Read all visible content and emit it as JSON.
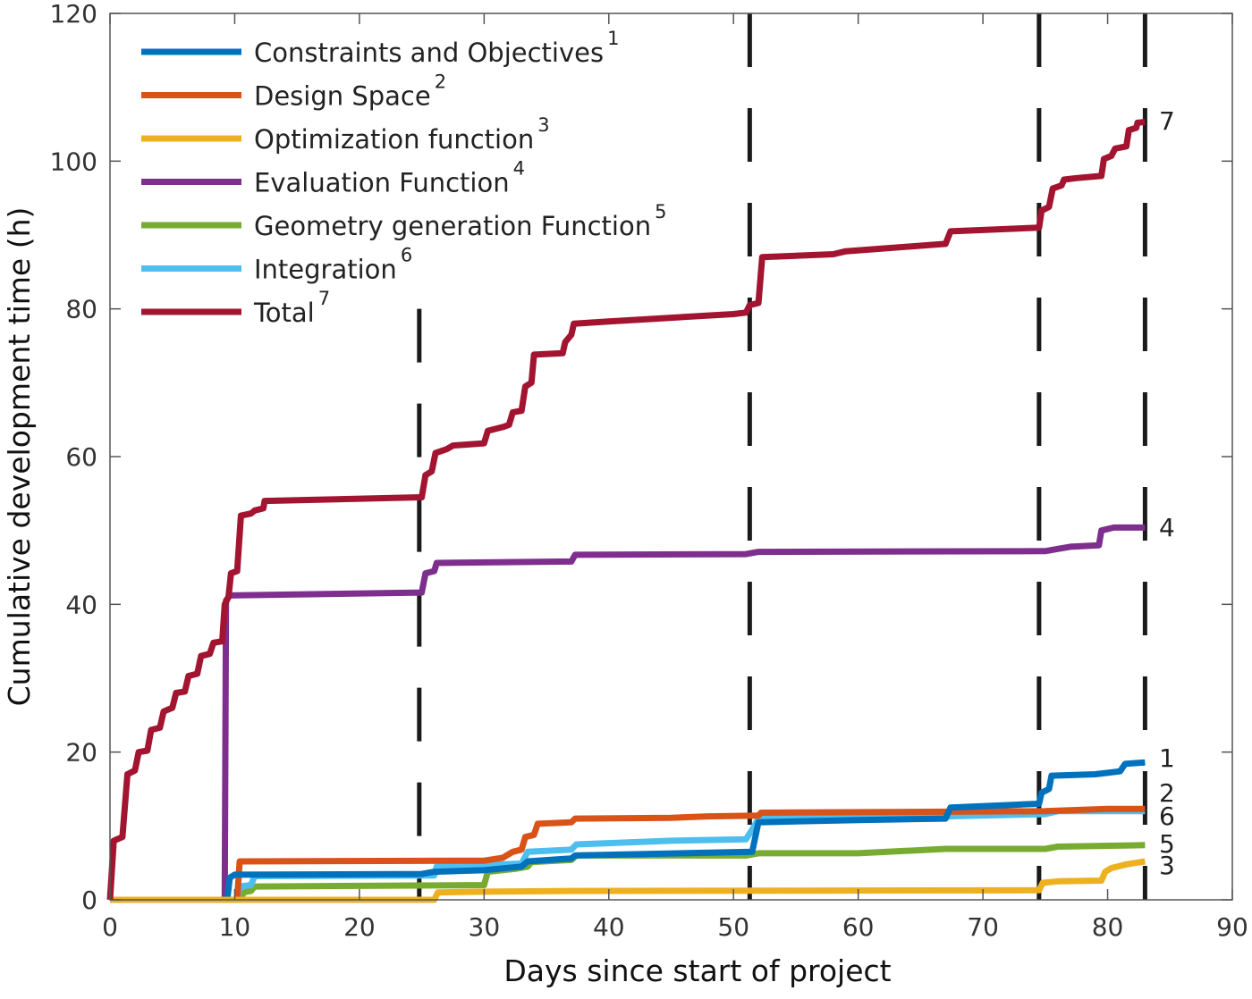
{
  "chart_data": {
    "type": "line",
    "title": "",
    "xlabel": "Days since start of project",
    "ylabel": "Cumulative development time (h)",
    "xlim": [
      0,
      90
    ],
    "ylim": [
      0,
      120
    ],
    "xticks": [
      0,
      10,
      20,
      30,
      40,
      50,
      60,
      70,
      80,
      90
    ],
    "yticks": [
      0,
      20,
      40,
      60,
      80,
      100,
      120
    ],
    "grid": false,
    "legend_position": "top-left",
    "phase_markers_x": [
      24.8,
      51.3,
      74.5,
      83.0
    ],
    "series": [
      {
        "name": "Constraints and Objectives",
        "sup": "1",
        "end_label": "1",
        "color": "#0072BD",
        "points": [
          [
            0,
            0
          ],
          [
            9.4,
            0
          ],
          [
            9.6,
            3
          ],
          [
            10,
            3.4
          ],
          [
            25,
            3.5
          ],
          [
            26,
            3.8
          ],
          [
            30,
            4
          ],
          [
            33,
            4.5
          ],
          [
            33.5,
            5.2
          ],
          [
            37,
            5.6
          ],
          [
            37.3,
            6
          ],
          [
            51.5,
            6.5
          ],
          [
            52,
            10.5
          ],
          [
            60,
            10.8
          ],
          [
            67,
            11
          ],
          [
            67.4,
            12.5
          ],
          [
            74.5,
            13
          ],
          [
            74.7,
            14.5
          ],
          [
            75.3,
            15
          ],
          [
            75.5,
            16.8
          ],
          [
            79,
            17
          ],
          [
            81,
            17.4
          ],
          [
            81.4,
            18.4
          ],
          [
            83,
            18.6
          ]
        ]
      },
      {
        "name": "Design Space",
        "sup": "2",
        "end_label": "2",
        "color": "#D95319",
        "points": [
          [
            0,
            0
          ],
          [
            10.2,
            0
          ],
          [
            10.4,
            5.2
          ],
          [
            30,
            5.3
          ],
          [
            31.5,
            5.7
          ],
          [
            32.3,
            6.5
          ],
          [
            33,
            6.8
          ],
          [
            33.3,
            8.5
          ],
          [
            34,
            8.8
          ],
          [
            34.3,
            10.3
          ],
          [
            37,
            10.5
          ],
          [
            37.3,
            11
          ],
          [
            45,
            11.1
          ],
          [
            48,
            11.3
          ],
          [
            52,
            11.4
          ],
          [
            52.2,
            11.8
          ],
          [
            75,
            12
          ],
          [
            80,
            12.3
          ],
          [
            83,
            12.3
          ]
        ]
      },
      {
        "name": "Optimization function",
        "sup": "3",
        "end_label": "3",
        "color": "#EDB120",
        "points": [
          [
            0,
            0
          ],
          [
            26,
            0
          ],
          [
            26.3,
            1
          ],
          [
            30,
            1.1
          ],
          [
            37,
            1.2
          ],
          [
            74.5,
            1.3
          ],
          [
            74.8,
            2.3
          ],
          [
            76,
            2.5
          ],
          [
            79.5,
            2.6
          ],
          [
            79.8,
            3.8
          ],
          [
            80.3,
            4.3
          ],
          [
            81.5,
            4.8
          ],
          [
            83,
            5.2
          ]
        ]
      },
      {
        "name": "Evaluation Function",
        "sup": "4",
        "end_label": "4",
        "color": "#7E2F8E",
        "points": [
          [
            0,
            0
          ],
          [
            9.2,
            0
          ],
          [
            9.3,
            40.5
          ],
          [
            9.6,
            41.2
          ],
          [
            25,
            41.6
          ],
          [
            25.3,
            44.2
          ],
          [
            26,
            44.5
          ],
          [
            26.2,
            45.6
          ],
          [
            37,
            45.8
          ],
          [
            37.3,
            46.7
          ],
          [
            51,
            46.8
          ],
          [
            52,
            47.1
          ],
          [
            75,
            47.2
          ],
          [
            76,
            47.5
          ],
          [
            77,
            47.8
          ],
          [
            79.3,
            48
          ],
          [
            79.5,
            50
          ],
          [
            80.5,
            50.4
          ],
          [
            83,
            50.4
          ]
        ]
      },
      {
        "name": "Geometry generation Function",
        "sup": "5",
        "end_label": "5",
        "color": "#77AC30",
        "points": [
          [
            0,
            0
          ],
          [
            10.5,
            0
          ],
          [
            10.7,
            1
          ],
          [
            11.3,
            1.2
          ],
          [
            11.6,
            1.8
          ],
          [
            30,
            2
          ],
          [
            30.3,
            3.8
          ],
          [
            32.5,
            4.2
          ],
          [
            33.5,
            4.5
          ],
          [
            33.8,
            5.1
          ],
          [
            37,
            5.4
          ],
          [
            37.4,
            6
          ],
          [
            51,
            6
          ],
          [
            52,
            6.3
          ],
          [
            60,
            6.3
          ],
          [
            67,
            6.9
          ],
          [
            75,
            6.9
          ],
          [
            76,
            7.2
          ],
          [
            83,
            7.4
          ]
        ]
      },
      {
        "name": "Integration",
        "sup": "6",
        "end_label": "6",
        "color": "#4DBEEE",
        "points": [
          [
            0,
            0
          ],
          [
            10.2,
            0
          ],
          [
            10.4,
            1.8
          ],
          [
            11.3,
            2
          ],
          [
            11.6,
            3.2
          ],
          [
            26,
            3.3
          ],
          [
            26.2,
            4.5
          ],
          [
            33,
            4.9
          ],
          [
            33.5,
            6.5
          ],
          [
            37,
            6.8
          ],
          [
            37.4,
            7.5
          ],
          [
            45,
            8
          ],
          [
            51,
            8.2
          ],
          [
            51.5,
            9.5
          ],
          [
            52,
            11
          ],
          [
            67,
            11.3
          ],
          [
            75,
            11.6
          ],
          [
            76,
            12
          ],
          [
            83,
            12
          ]
        ]
      },
      {
        "name": "Total",
        "sup": "7",
        "end_label": "7",
        "color": "#A2142F",
        "points": [
          [
            0,
            0
          ],
          [
            0.3,
            8
          ],
          [
            1,
            8.5
          ],
          [
            1.4,
            17
          ],
          [
            2,
            17.5
          ],
          [
            2.3,
            20
          ],
          [
            3,
            20.2
          ],
          [
            3.3,
            23
          ],
          [
            4,
            23.3
          ],
          [
            4.3,
            25.5
          ],
          [
            5,
            26
          ],
          [
            5.3,
            28
          ],
          [
            6,
            28.2
          ],
          [
            6.3,
            30.3
          ],
          [
            7,
            30.6
          ],
          [
            7.3,
            33
          ],
          [
            8,
            33.3
          ],
          [
            8.3,
            34.8
          ],
          [
            9,
            35
          ],
          [
            9.2,
            40
          ],
          [
            9.5,
            41
          ],
          [
            9.7,
            44.2
          ],
          [
            10.2,
            44.5
          ],
          [
            10.5,
            52
          ],
          [
            11.3,
            52.3
          ],
          [
            11.6,
            52.7
          ],
          [
            12.3,
            53
          ],
          [
            12.4,
            54
          ],
          [
            25,
            54.5
          ],
          [
            25.3,
            57.5
          ],
          [
            25.8,
            58
          ],
          [
            26.1,
            60.5
          ],
          [
            27,
            61
          ],
          [
            27.5,
            61.5
          ],
          [
            30,
            61.8
          ],
          [
            30.3,
            63.5
          ],
          [
            31.5,
            64
          ],
          [
            32,
            64.3
          ],
          [
            32.3,
            66
          ],
          [
            33,
            66.2
          ],
          [
            33.3,
            69.5
          ],
          [
            33.8,
            70
          ],
          [
            34,
            73.8
          ],
          [
            36.3,
            74
          ],
          [
            36.5,
            75.5
          ],
          [
            37,
            76.5
          ],
          [
            37.2,
            78
          ],
          [
            40,
            78.3
          ],
          [
            45,
            78.8
          ],
          [
            50,
            79.3
          ],
          [
            51,
            79.5
          ],
          [
            51.3,
            80.5
          ],
          [
            52,
            80.8
          ],
          [
            52.3,
            87
          ],
          [
            58,
            87.4
          ],
          [
            59,
            87.8
          ],
          [
            67,
            88.8
          ],
          [
            67.4,
            90.5
          ],
          [
            74.5,
            91
          ],
          [
            74.7,
            93.3
          ],
          [
            75.3,
            93.8
          ],
          [
            75.6,
            96.3
          ],
          [
            76.3,
            96.7
          ],
          [
            76.5,
            97.5
          ],
          [
            77.5,
            97.7
          ],
          [
            79.5,
            98
          ],
          [
            79.7,
            100.3
          ],
          [
            80.3,
            100.7
          ],
          [
            80.6,
            101.7
          ],
          [
            81.5,
            102
          ],
          [
            81.7,
            104.2
          ],
          [
            82.3,
            104.5
          ],
          [
            82.4,
            105.2
          ],
          [
            83,
            105.3
          ]
        ]
      }
    ]
  }
}
